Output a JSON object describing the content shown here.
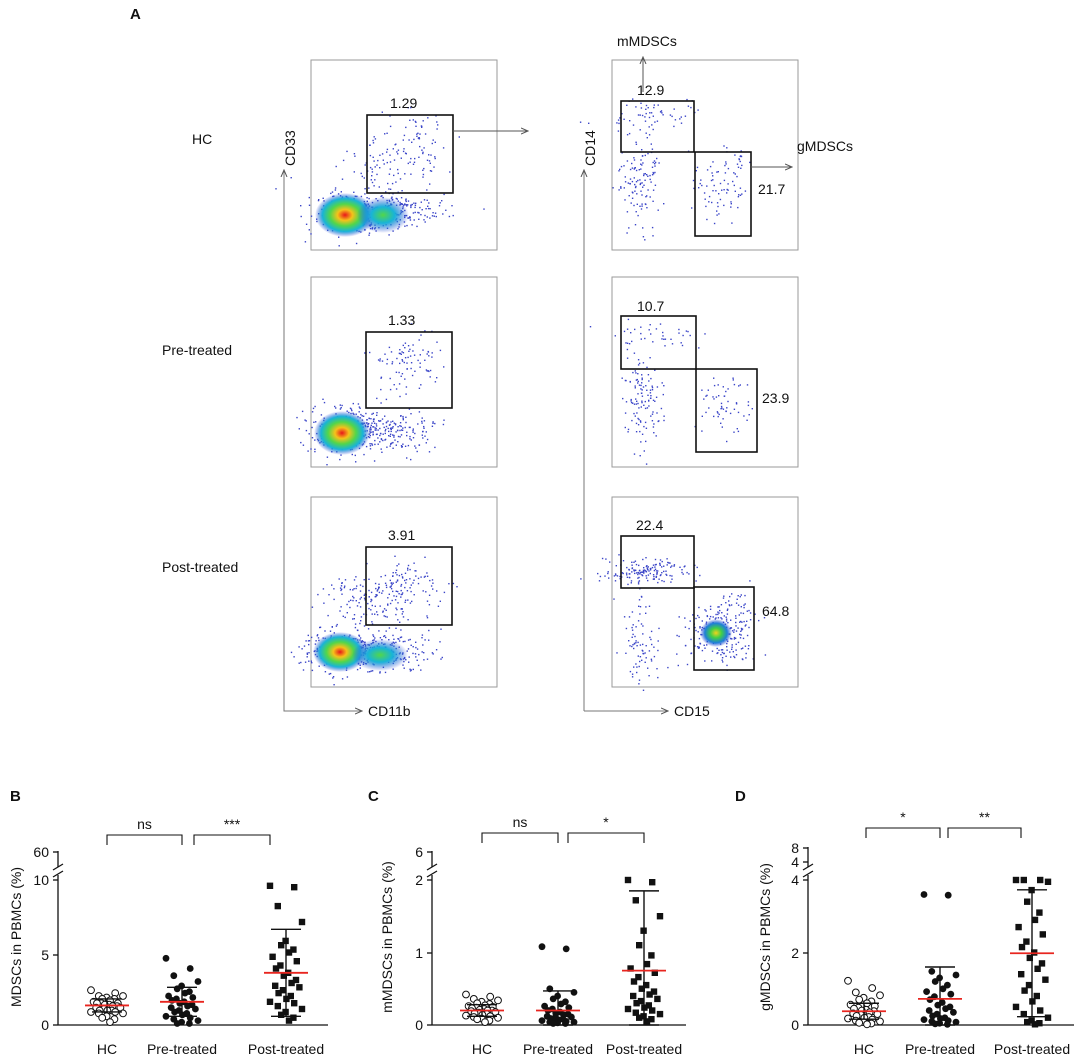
{
  "figure": {
    "panel_labels": [
      "A",
      "B",
      "C",
      "D"
    ]
  },
  "flow": {
    "rows": [
      {
        "label": "HC",
        "left_value": "1.29",
        "mmdsc": "12.9",
        "gmdsc": "21.7"
      },
      {
        "label": "Pre-treated",
        "left_value": "1.33",
        "mmdsc": "10.7",
        "gmdsc": "23.9"
      },
      {
        "label": "Post-treated",
        "left_value": "3.91",
        "mmdsc": "22.4",
        "gmdsc": "64.8"
      }
    ],
    "left_y_axis": "CD33",
    "left_x_axis": "CD11b",
    "right_y_axis": "CD14",
    "right_x_axis": "CD15",
    "mmdsc_label": "mMDSCs",
    "gmdsc_label": "gMDSCs"
  },
  "chart_data": [
    {
      "panel": "B",
      "type": "scatter",
      "ylabel": "MDSCs in PBMCs (%)",
      "categories": [
        "HC",
        "Pre-treated",
        "Post-treated"
      ],
      "lower_ticks": [
        "0",
        "5",
        "10"
      ],
      "upper_ticks": [
        "60"
      ],
      "ylim_lower": [
        0,
        10
      ],
      "comparisons": [
        {
          "from": "HC",
          "to": "Pre-treated",
          "label": "ns"
        },
        {
          "from": "Pre-treated",
          "to": "Post-treated",
          "label": "***"
        }
      ],
      "series": [
        {
          "name": "HC",
          "marker": "open-circle",
          "mean": 1.35,
          "sd": 0.45,
          "values": [
            2.4,
            2.2,
            2.0,
            2.0,
            1.9,
            1.8,
            1.8,
            1.7,
            1.6,
            1.5,
            1.5,
            1.5,
            1.4,
            1.4,
            1.3,
            1.3,
            1.2,
            1.2,
            1.1,
            1.0,
            1.0,
            1.0,
            0.9,
            0.9,
            0.8,
            0.8,
            0.6,
            0.5,
            0.4,
            0.2
          ]
        },
        {
          "name": "Pre-treated",
          "marker": "filled-circle",
          "mean": 1.6,
          "sd": 1.0,
          "values": [
            4.6,
            3.9,
            3.4,
            3.0,
            2.7,
            2.5,
            2.3,
            2.2,
            2.0,
            1.9,
            1.8,
            1.7,
            1.6,
            1.5,
            1.4,
            1.3,
            1.2,
            1.1,
            1.0,
            0.9,
            0.8,
            0.7,
            0.6,
            0.5,
            0.4,
            0.3,
            0.2,
            0.1,
            0.1
          ]
        },
        {
          "name": "Post-treated",
          "marker": "filled-square",
          "mean": 3.6,
          "sd": 3.0,
          "values": [
            9.6,
            9.5,
            8.2,
            7.1,
            5.8,
            5.5,
            5.2,
            5.0,
            4.7,
            4.4,
            4.1,
            3.9,
            3.6,
            3.4,
            3.1,
            2.9,
            2.7,
            2.6,
            2.4,
            2.2,
            2.0,
            1.8,
            1.6,
            1.5,
            1.3,
            1.1,
            0.9,
            0.7,
            0.5,
            0.3
          ]
        }
      ]
    },
    {
      "panel": "C",
      "type": "scatter",
      "ylabel": "mMDSCs in PBMCs (%)",
      "categories": [
        "HC",
        "Pre-treated",
        "Post-treated"
      ],
      "lower_ticks": [
        "0",
        "1",
        "2"
      ],
      "upper_ticks": [
        "6"
      ],
      "ylim_lower": [
        0,
        2
      ],
      "comparisons": [
        {
          "from": "HC",
          "to": "Pre-treated",
          "label": "ns"
        },
        {
          "from": "Pre-treated",
          "to": "Post-treated",
          "label": "*"
        }
      ],
      "series": [
        {
          "name": "HC",
          "marker": "open-circle",
          "mean": 0.2,
          "sd": 0.08,
          "values": [
            0.42,
            0.39,
            0.36,
            0.34,
            0.32,
            0.3,
            0.29,
            0.27,
            0.26,
            0.25,
            0.24,
            0.23,
            0.22,
            0.21,
            0.2,
            0.2,
            0.19,
            0.18,
            0.17,
            0.16,
            0.15,
            0.14,
            0.13,
            0.12,
            0.11,
            0.1,
            0.09,
            0.08,
            0.06,
            0.04
          ]
        },
        {
          "name": "Pre-treated",
          "marker": "filled-circle",
          "mean": 0.2,
          "sd": 0.27,
          "values": [
            1.08,
            1.05,
            0.5,
            0.45,
            0.4,
            0.36,
            0.32,
            0.29,
            0.26,
            0.24,
            0.22,
            0.2,
            0.18,
            0.16,
            0.15,
            0.14,
            0.12,
            0.11,
            0.1,
            0.09,
            0.08,
            0.07,
            0.06,
            0.05,
            0.04,
            0.04,
            0.03,
            0.02,
            0.02
          ]
        },
        {
          "name": "Post-treated",
          "marker": "filled-square",
          "mean": 0.75,
          "sd": 1.1,
          "values": [
            2.02,
            1.97,
            1.72,
            1.5,
            1.3,
            1.1,
            0.96,
            0.84,
            0.78,
            0.72,
            0.66,
            0.6,
            0.55,
            0.5,
            0.46,
            0.42,
            0.4,
            0.36,
            0.33,
            0.3,
            0.27,
            0.24,
            0.22,
            0.2,
            0.17,
            0.15,
            0.12,
            0.1,
            0.08,
            0.05
          ]
        }
      ]
    },
    {
      "panel": "D",
      "type": "scatter",
      "ylabel": "gMDSCs in PBMCs (%)",
      "categories": [
        "HC",
        "Pre-treated",
        "Post-treated"
      ],
      "lower_ticks": [
        "0",
        "2",
        "4"
      ],
      "upper_ticks": [
        "4",
        "8"
      ],
      "ylim_lower": [
        0,
        4
      ],
      "comparisons": [
        {
          "from": "HC",
          "to": "Pre-treated",
          "label": "*"
        },
        {
          "from": "Pre-treated",
          "to": "Post-treated",
          "label": "**"
        }
      ],
      "series": [
        {
          "name": "HC",
          "marker": "open-circle",
          "mean": 0.38,
          "sd": 0.22,
          "values": [
            1.22,
            1.02,
            0.9,
            0.82,
            0.75,
            0.7,
            0.65,
            0.6,
            0.56,
            0.52,
            0.48,
            0.45,
            0.42,
            0.4,
            0.38,
            0.35,
            0.32,
            0.3,
            0.28,
            0.25,
            0.22,
            0.2,
            0.18,
            0.15,
            0.12,
            0.1,
            0.08,
            0.06,
            0.04,
            0.02
          ]
        },
        {
          "name": "Pre-treated",
          "marker": "filled-circle",
          "mean": 0.72,
          "sd": 0.88,
          "values": [
            3.6,
            3.58,
            1.48,
            1.38,
            1.3,
            1.2,
            1.1,
            1.0,
            0.92,
            0.85,
            0.78,
            0.7,
            0.62,
            0.55,
            0.5,
            0.45,
            0.4,
            0.35,
            0.3,
            0.25,
            0.2,
            0.18,
            0.15,
            0.12,
            0.1,
            0.08,
            0.05,
            0.03,
            0.02
          ]
        },
        {
          "name": "Post-treated",
          "marker": "filled-square",
          "mean": 1.98,
          "sd": 1.75,
          "values": [
            4.25,
            4.15,
            4.05,
            3.95,
            3.72,
            3.4,
            3.1,
            2.9,
            2.7,
            2.5,
            2.3,
            2.15,
            2.0,
            1.85,
            1.7,
            1.55,
            1.4,
            1.25,
            1.1,
            0.95,
            0.8,
            0.65,
            0.5,
            0.4,
            0.3,
            0.2,
            0.12,
            0.08,
            0.05,
            0.02
          ]
        }
      ]
    }
  ]
}
